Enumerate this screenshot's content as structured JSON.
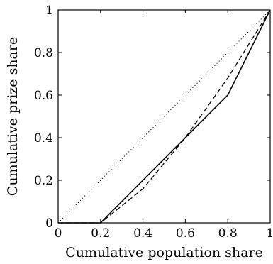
{
  "chart_data": {
    "type": "line",
    "xlabel": "Cumulative population share",
    "ylabel": "Cumulative prize share",
    "xlim": [
      0,
      1
    ],
    "ylim": [
      0,
      1
    ],
    "xticks": [
      {
        "value": 0,
        "label": "0"
      },
      {
        "value": 0.2,
        "label": "0.2"
      },
      {
        "value": 0.4,
        "label": "0.4"
      },
      {
        "value": 0.6,
        "label": "0.6"
      },
      {
        "value": 0.8,
        "label": "0.8"
      },
      {
        "value": 1,
        "label": "1"
      }
    ],
    "yticks": [
      {
        "value": 0,
        "label": "0"
      },
      {
        "value": 0.2,
        "label": "0.2"
      },
      {
        "value": 0.4,
        "label": "0.4"
      },
      {
        "value": 0.6,
        "label": "0.6"
      },
      {
        "value": 0.8,
        "label": "0.8"
      },
      {
        "value": 1,
        "label": "1"
      }
    ],
    "grid": false,
    "series": [
      {
        "style": "solid",
        "color": "#000000",
        "x": [
          0,
          0.2,
          0.6,
          0.8,
          1
        ],
        "y": [
          0,
          0,
          0.4,
          0.6,
          1
        ]
      },
      {
        "style": "dashed",
        "color": "#000000",
        "x": [
          0,
          0.2,
          0.4,
          0.6,
          0.8,
          1
        ],
        "y": [
          0,
          0,
          0.16,
          0.4,
          0.68,
          1
        ]
      },
      {
        "style": "dotted",
        "color": "#000000",
        "x": [
          0,
          1
        ],
        "y": [
          0,
          1
        ]
      }
    ]
  }
}
